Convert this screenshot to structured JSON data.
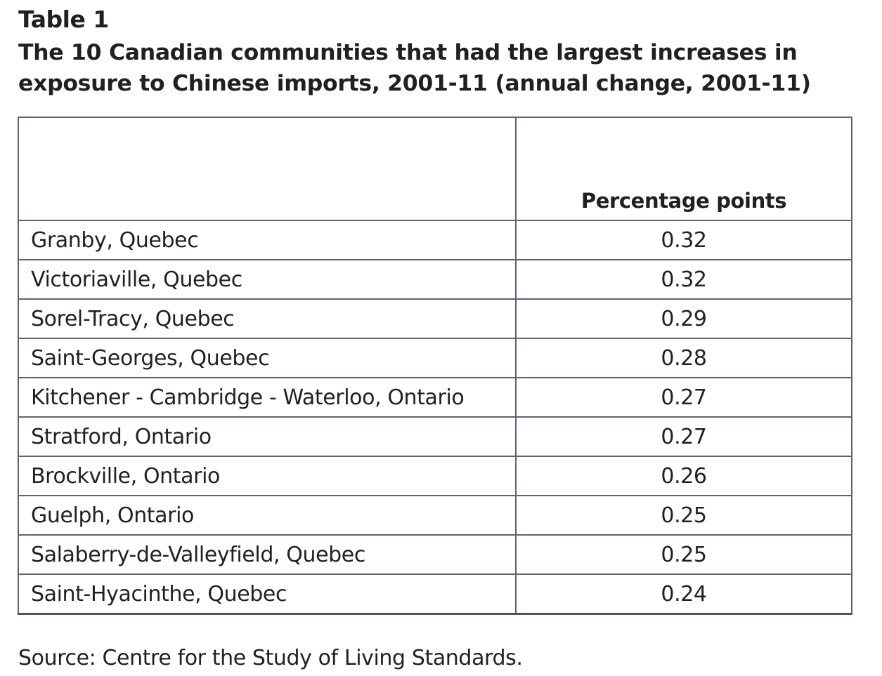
{
  "table_label": "Table 1",
  "title": "The 10 Canadian communities that had the largest increases in exposure to Chinese imports, 2001-11 (annual change, 2001-11)",
  "header": {
    "community": "",
    "value": "Percentage points"
  },
  "rows": [
    {
      "community": "Granby, Quebec",
      "value": "0.32"
    },
    {
      "community": "Victoriaville, Quebec",
      "value": "0.32"
    },
    {
      "community": "Sorel-Tracy, Quebec",
      "value": "0.29"
    },
    {
      "community": "Saint-Georges, Quebec",
      "value": "0.28"
    },
    {
      "community": "Kitchener - Cambridge - Waterloo, Ontario",
      "value": "0.27"
    },
    {
      "community": "Stratford, Ontario",
      "value": "0.27"
    },
    {
      "community": "Brockville, Ontario",
      "value": "0.26"
    },
    {
      "community": "Guelph, Ontario",
      "value": "0.25"
    },
    {
      "community": "Salaberry-de-Valleyfield, Quebec",
      "value": "0.25"
    },
    {
      "community": "Saint-Hyacinthe, Quebec",
      "value": "0.24"
    }
  ],
  "source": "Source: Centre for the Study of Living Standards."
}
